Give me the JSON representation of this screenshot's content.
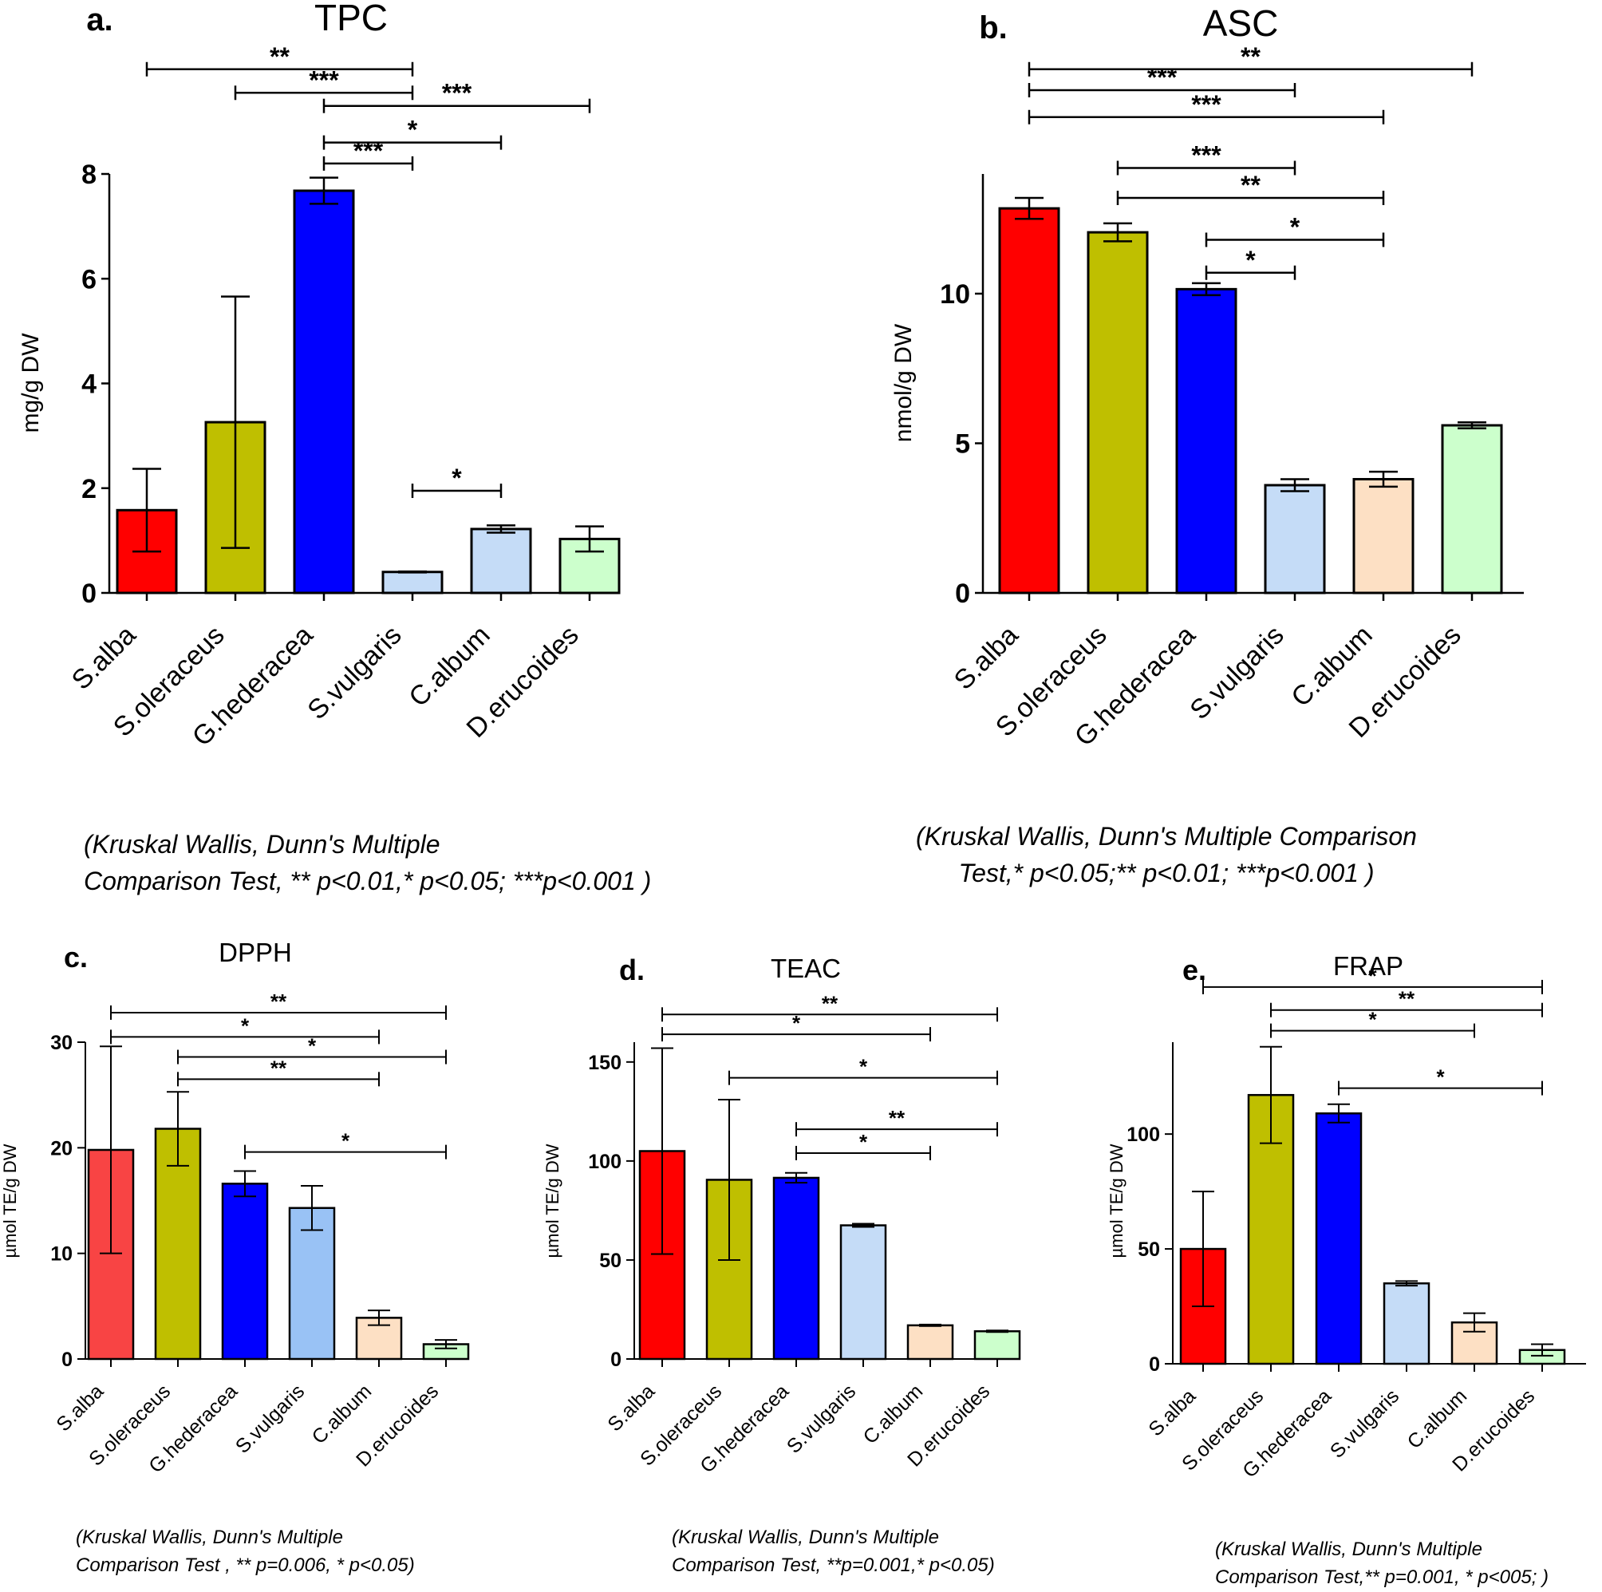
{
  "chart_data": [
    {
      "type": "bar",
      "panel_label": "a.",
      "title": "TPC",
      "ylabel": "mg/g DW",
      "xlabel": "",
      "ylim": [
        0,
        8
      ],
      "yticks": [
        0,
        2,
        4,
        6,
        8
      ],
      "grid": false,
      "categories": [
        "S.alba",
        "S.oleraceus",
        "G.hederacea",
        "S.vulgaris",
        "C.album",
        "D.erucoides"
      ],
      "values": [
        1.58,
        3.26,
        7.68,
        0.4,
        1.22,
        1.03
      ],
      "errors": [
        0.79,
        2.4,
        0.25,
        0.01,
        0.07,
        0.24
      ],
      "colors": [
        "#ff0000",
        "#bfbf00",
        "#0000ff",
        "#c5dcf7",
        "#c5dcf7",
        "#ccffcc"
      ],
      "significance": [
        {
          "from": 0,
          "to": 3,
          "label": "**",
          "level": 10.0
        },
        {
          "from": 1,
          "to": 3,
          "label": "***",
          "level": 9.55
        },
        {
          "from": 2,
          "to": 5,
          "label": "***",
          "level": 9.3
        },
        {
          "from": 2,
          "to": 4,
          "label": "*",
          "level": 8.6
        },
        {
          "from": 2,
          "to": 3,
          "label": "***",
          "level": 8.2
        },
        {
          "from": 3,
          "to": 4,
          "label": "*",
          "level": 1.95
        }
      ],
      "note": [
        "(Kruskal Wallis, Dunn's Multiple",
        "Comparison Test, ** p<0.01,* p<0.05; ***p<0.001 )"
      ]
    },
    {
      "type": "bar",
      "panel_label": "b.",
      "title": "ASC",
      "ylabel": "nmol/g DW",
      "xlabel": "",
      "ylim": [
        0,
        14
      ],
      "yticks": [
        0,
        5,
        10
      ],
      "grid": false,
      "categories": [
        "S.alba",
        "S.oleraceus",
        "G.hederacea",
        "S.vulgaris",
        "C.album",
        "D.erucoides"
      ],
      "values": [
        12.85,
        12.05,
        10.15,
        3.6,
        3.8,
        5.6
      ],
      "errors": [
        0.35,
        0.3,
        0.2,
        0.2,
        0.25,
        0.1
      ],
      "colors": [
        "#ff0000",
        "#bfbf00",
        "#0000ff",
        "#c5dcf7",
        "#fde0c4",
        "#ccffcc"
      ],
      "significance": [
        {
          "from": 0,
          "to": 5,
          "label": "**",
          "level": 17.5
        },
        {
          "from": 0,
          "to": 3,
          "label": "***",
          "level": 16.8
        },
        {
          "from": 0,
          "to": 4,
          "label": "***",
          "level": 15.9
        },
        {
          "from": 1,
          "to": 3,
          "label": "***",
          "level": 14.2
        },
        {
          "from": 1,
          "to": 4,
          "label": "**",
          "level": 13.2
        },
        {
          "from": 2,
          "to": 4,
          "label": "*",
          "level": 11.8
        },
        {
          "from": 2,
          "to": 3,
          "label": "*",
          "level": 10.7
        }
      ],
      "note": [
        "(Kruskal Wallis, Dunn's Multiple Comparison",
        "Test,* p<0.05;** p<0.01; ***p<0.001 )"
      ]
    },
    {
      "type": "bar",
      "panel_label": "c.",
      "title": "DPPH",
      "ylabel": "µmol TE/g DW",
      "xlabel": "",
      "ylim": [
        0,
        30
      ],
      "yticks": [
        0,
        10,
        20,
        30
      ],
      "grid": false,
      "categories": [
        "S.alba",
        "S.oleraceus",
        "G.hederacea",
        "S.vulgaris",
        "C.album",
        "D.erucoides"
      ],
      "values": [
        19.8,
        21.8,
        16.6,
        14.3,
        3.9,
        1.4
      ],
      "errors": [
        9.8,
        3.5,
        1.2,
        2.1,
        0.7,
        0.4
      ],
      "colors": [
        "#f84444",
        "#bfbf00",
        "#0000ff",
        "#99c2f5",
        "#fde0c4",
        "#ccffcc"
      ],
      "significance": [
        {
          "from": 0,
          "to": 5,
          "label": "**",
          "level": 32.8
        },
        {
          "from": 0,
          "to": 4,
          "label": "*",
          "level": 30.5
        },
        {
          "from": 1,
          "to": 5,
          "label": "*",
          "level": 28.6
        },
        {
          "from": 1,
          "to": 4,
          "label": "**",
          "level": 26.5
        },
        {
          "from": 2,
          "to": 5,
          "label": "*",
          "level": 19.6
        }
      ],
      "note": [
        "(Kruskal Wallis, Dunn's Multiple",
        "Comparison Test , ** p=0.006, * p<0.05)"
      ]
    },
    {
      "type": "bar",
      "panel_label": "d.",
      "title": "TEAC",
      "ylabel": "µmol TE/g DW",
      "xlabel": "",
      "ylim": [
        0,
        160
      ],
      "yticks": [
        0,
        50,
        100,
        150
      ],
      "grid": false,
      "categories": [
        "S.alba",
        "S.oleraceus",
        "G.hederacea",
        "S.vulgaris",
        "C.album",
        "D.erucoides"
      ],
      "values": [
        105,
        90.5,
        91.5,
        67.5,
        17,
        14
      ],
      "errors": [
        52,
        40.5,
        2.5,
        0.8,
        0.4,
        0.4
      ],
      "colors": [
        "#ff0000",
        "#bfbf00",
        "#0000ff",
        "#c5dcf7",
        "#fde0c4",
        "#ccffcc"
      ],
      "significance": [
        {
          "from": 0,
          "to": 5,
          "label": "**",
          "level": 174
        },
        {
          "from": 0,
          "to": 4,
          "label": "*",
          "level": 164
        },
        {
          "from": 1,
          "to": 5,
          "label": "*",
          "level": 142
        },
        {
          "from": 2,
          "to": 5,
          "label": "**",
          "level": 116
        },
        {
          "from": 2,
          "to": 4,
          "label": "*",
          "level": 104
        }
      ],
      "note": [
        "(Kruskal Wallis,    Dunn's Multiple",
        "Comparison Test,  **p=0.001,* p<0.05)"
      ]
    },
    {
      "type": "bar",
      "panel_label": "e.",
      "title": "FRAP",
      "ylabel": "µmol TE/g DW",
      "xlabel": "",
      "ylim": [
        0,
        140
      ],
      "yticks": [
        0,
        50,
        100
      ],
      "grid": false,
      "categories": [
        "S.alba",
        "S.oleraceus",
        "G.hederacea",
        "S.vulgaris",
        "C.album",
        "D.erucoides"
      ],
      "values": [
        50,
        117,
        109,
        35,
        18,
        6
      ],
      "errors": [
        25,
        21,
        4,
        1,
        4,
        2.5
      ],
      "colors": [
        "#ff0000",
        "#bfbf00",
        "#0000ff",
        "#c5dcf7",
        "#fde0c4",
        "#ccffcc"
      ],
      "significance": [
        {
          "from": 0,
          "to": 5,
          "label": "*",
          "level": 164
        },
        {
          "from": 1,
          "to": 5,
          "label": "**",
          "level": 154
        },
        {
          "from": 1,
          "to": 4,
          "label": "*",
          "level": 145
        },
        {
          "from": 2,
          "to": 5,
          "label": "*",
          "level": 120
        }
      ],
      "note": [
        "(Kruskal Wallis, Dunn's Multiple",
        "Comparison Test,** p=0.001, * p<005; )"
      ]
    }
  ]
}
